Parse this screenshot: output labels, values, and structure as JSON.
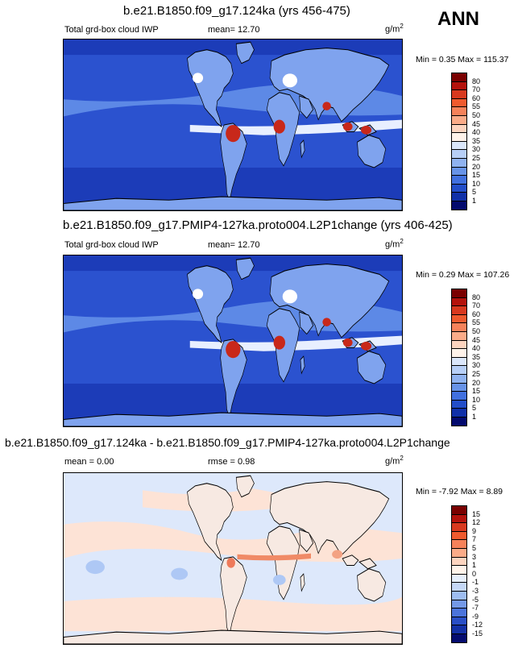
{
  "season": "ANN",
  "panels": [
    {
      "title": "b.e21.B1850.f09_g17.124ka (yrs 456-475)",
      "left_label": "Total grd-box cloud IWP",
      "stat_label": "mean=",
      "stat_value": "12.70",
      "units": "g/m",
      "units_sup": "2",
      "min_label": "Min =",
      "min_value": "0.35",
      "max_label": "Max =",
      "max_value": "115.37",
      "colorbar": {
        "labels": [
          "80",
          "70",
          "60",
          "55",
          "50",
          "45",
          "40",
          "35",
          "30",
          "25",
          "20",
          "15",
          "10",
          "5",
          "1"
        ],
        "colors": [
          "#7a0000",
          "#b4120c",
          "#d8391f",
          "#ef5a2e",
          "#f6825a",
          "#fbab88",
          "#fdd4bf",
          "#fff3ea",
          "#dbe7fb",
          "#b7cff7",
          "#8fb2f0",
          "#6793e8",
          "#4170df",
          "#234ec9",
          "#1030a8",
          "#030a6e"
        ]
      }
    },
    {
      "title": "b.e21.B1850.f09_g17.PMIP4-127ka.proto004.L2P1change (yrs 406-425)",
      "left_label": "Total grd-box cloud IWP",
      "stat_label": "mean=",
      "stat_value": "12.70",
      "units": "g/m",
      "units_sup": "2",
      "min_label": "Min =",
      "min_value": "0.29",
      "max_label": "Max =",
      "max_value": "107.26",
      "colorbar": {
        "labels": [
          "80",
          "70",
          "60",
          "55",
          "50",
          "45",
          "40",
          "35",
          "30",
          "25",
          "20",
          "15",
          "10",
          "5",
          "1"
        ],
        "colors": [
          "#7a0000",
          "#b4120c",
          "#d8391f",
          "#ef5a2e",
          "#f6825a",
          "#fbab88",
          "#fdd4bf",
          "#fff3ea",
          "#dbe7fb",
          "#b7cff7",
          "#8fb2f0",
          "#6793e8",
          "#4170df",
          "#234ec9",
          "#1030a8",
          "#030a6e"
        ]
      }
    },
    {
      "title": "b.e21.B1850.f09_g17.124ka - b.e21.B1850.f09_g17.PMIP4-127ka.proto004.L2P1change",
      "left_label": "mean =",
      "left_value": "0.00",
      "stat_label": "rmse =",
      "stat_value": "0.98",
      "units": "g/m",
      "units_sup": "2",
      "min_label": "Min =",
      "min_value": "-7.92",
      "max_label": "Max =",
      "max_value": "8.89",
      "colorbar": {
        "labels": [
          "15",
          "12",
          "9",
          "7",
          "5",
          "3",
          "1",
          "0",
          "-1",
          "-3",
          "-5",
          "-7",
          "-9",
          "-12",
          "-15"
        ],
        "colors": [
          "#7a0000",
          "#b4120c",
          "#d8391f",
          "#ef5a2e",
          "#f6825a",
          "#fbab88",
          "#fdd4bf",
          "#fff3ea",
          "#e6effc",
          "#c5d8f7",
          "#9ebdf1",
          "#7499e8",
          "#4b74dc",
          "#2a4fc6",
          "#1431a6",
          "#050c70"
        ]
      }
    }
  ]
}
